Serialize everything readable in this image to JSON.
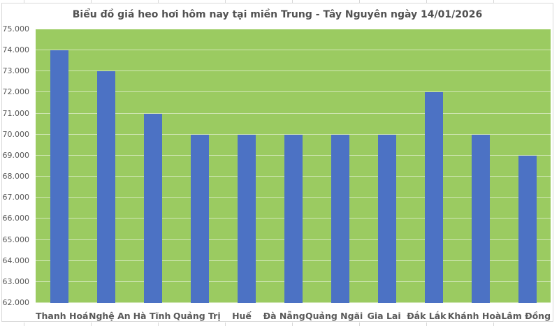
{
  "chart_data": {
    "type": "bar",
    "title": "Biểu đồ giá heo hơi hôm nay tại miền Trung - Tây Nguyên ngày 14/01/2026",
    "categories": [
      "Thanh Hoá",
      "Nghệ An",
      "Hà Tĩnh",
      "Quảng Trị",
      "Huế",
      "Đà Nẵng",
      "Quảng Ngãi",
      "Gia Lai",
      "Đắk Lắk",
      "Khánh Hoà",
      "Lâm Đồng"
    ],
    "values": [
      74000,
      73000,
      71000,
      70000,
      70000,
      70000,
      70000,
      70000,
      72000,
      70000,
      69000
    ],
    "xlabel": "",
    "ylabel": "",
    "ylim": [
      62000,
      75000
    ],
    "y_step": 1000,
    "y_tick_labels": [
      "75.000",
      "74.000",
      "73.000",
      "72.000",
      "71.000",
      "70.000",
      "69.000",
      "68.000",
      "67.000",
      "66.000",
      "65.000",
      "64.000",
      "63.000",
      "62.000"
    ],
    "grid": true,
    "legend": "none",
    "colors": {
      "bar": "#4C72C4",
      "plot_bg": "#9BCB61",
      "gridline": "rgba(255,255,255,0.55)",
      "axis_text": "#595959",
      "title_text": "#515151",
      "chart_border": "#D9D9D9",
      "chart_bg": "#FFFFFF"
    }
  }
}
